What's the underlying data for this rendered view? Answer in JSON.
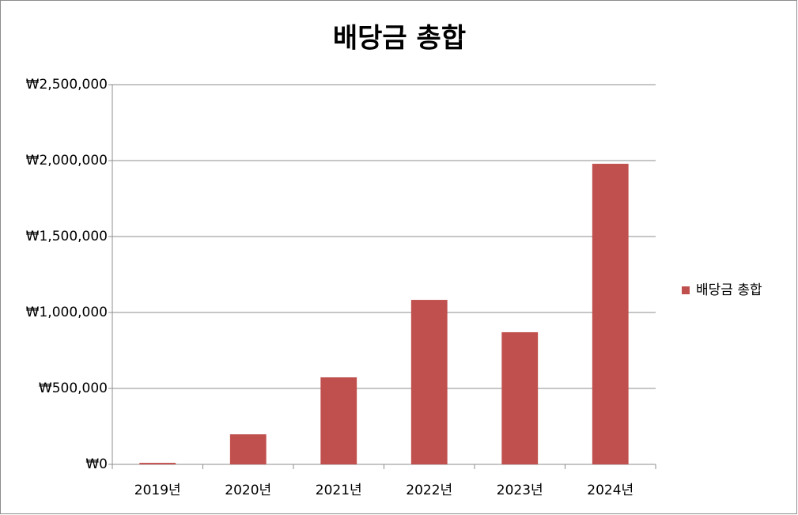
{
  "chart_data": {
    "type": "bar",
    "title": "배당금 총합",
    "categories": [
      "2019년",
      "2020년",
      "2021년",
      "2022년",
      "2023년",
      "2024년"
    ],
    "series": [
      {
        "name": "배당금 총합",
        "color": "#c0504d",
        "values": [
          10000,
          198000,
          573000,
          1083000,
          870000,
          1979000
        ]
      }
    ],
    "ylim": [
      0,
      2500000
    ],
    "yticks": [
      {
        "value": 0,
        "label": "₩0"
      },
      {
        "value": 500000,
        "label": "₩500,000"
      },
      {
        "value": 1000000,
        "label": "₩1,000,000"
      },
      {
        "value": 1500000,
        "label": "₩1,500,000"
      },
      {
        "value": 2000000,
        "label": "₩2,000,000"
      },
      {
        "value": 2500000,
        "label": "₩2,500,000"
      }
    ],
    "grid": true,
    "legend": "right"
  }
}
